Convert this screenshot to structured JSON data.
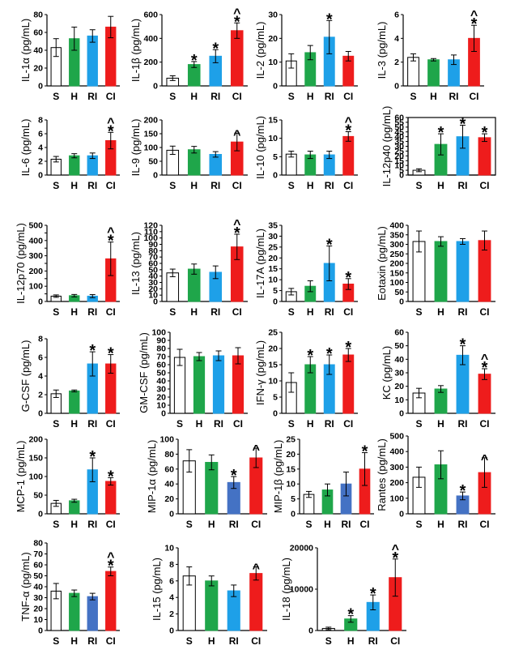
{
  "chart_data": [
    {
      "type": "bar",
      "ylabel": "IL-1α (pg/mL)",
      "categories": [
        "S",
        "H",
        "RI",
        "CI"
      ],
      "values": [
        43,
        53,
        56,
        66
      ],
      "errors": [
        10,
        13,
        7,
        12
      ],
      "ylim": [
        0,
        80
      ],
      "yticks": [
        0,
        20,
        40,
        60,
        80
      ],
      "marks": [
        "",
        "",
        "",
        ""
      ],
      "colors": [
        "#ffffff",
        "#1fa64a",
        "#1ea0e8",
        "#ee1c1c"
      ]
    },
    {
      "type": "bar",
      "ylabel": "IL-1β (pg/mL)",
      "categories": [
        "S",
        "H",
        "RI",
        "CI"
      ],
      "values": [
        65,
        180,
        250,
        465
      ],
      "errors": [
        20,
        25,
        55,
        65
      ],
      "ylim": [
        0,
        600
      ],
      "yticks": [
        0,
        200,
        400,
        600
      ],
      "marks": [
        "",
        "*",
        "*",
        "^*"
      ],
      "colors": [
        "#ffffff",
        "#1fa64a",
        "#1ea0e8",
        "#ee1c1c"
      ]
    },
    {
      "type": "bar",
      "ylabel": "IL-2 (pg/mL)",
      "categories": [
        "S",
        "H",
        "RI",
        "CI"
      ],
      "values": [
        10.5,
        14,
        20.5,
        12.5
      ],
      "errors": [
        3,
        3,
        7,
        2
      ],
      "ylim": [
        0,
        30
      ],
      "yticks": [
        0,
        10,
        20,
        30
      ],
      "marks": [
        "",
        "",
        "*",
        ""
      ],
      "colors": [
        "#ffffff",
        "#1fa64a",
        "#1ea0e8",
        "#ee1c1c"
      ]
    },
    {
      "type": "bar",
      "ylabel": "IL-3 (pg/mL)",
      "categories": [
        "S",
        "H",
        "RI",
        "CI"
      ],
      "values": [
        2.4,
        2.2,
        2.2,
        4
      ],
      "errors": [
        0.3,
        0.1,
        0.4,
        1.1
      ],
      "ylim": [
        0,
        6
      ],
      "yticks": [
        0,
        2,
        4,
        6
      ],
      "marks": [
        "",
        "",
        "",
        "^*"
      ],
      "colors": [
        "#ffffff",
        "#1fa64a",
        "#1ea0e8",
        "#ee1c1c"
      ]
    },
    {
      "type": "bar",
      "ylabel": "IL-6 (pg/mL)",
      "categories": [
        "S",
        "H",
        "RI",
        "CI"
      ],
      "values": [
        2.3,
        2.8,
        2.8,
        5
      ],
      "errors": [
        0.4,
        0.3,
        0.4,
        1.2
      ],
      "ylim": [
        0,
        8
      ],
      "yticks": [
        0,
        2,
        4,
        6,
        8
      ],
      "marks": [
        "",
        "",
        "",
        "^*"
      ],
      "colors": [
        "#ffffff",
        "#1fa64a",
        "#1ea0e8",
        "#ee1c1c"
      ]
    },
    {
      "type": "bar",
      "ylabel": "IL-9 (pg/mL)",
      "categories": [
        "S",
        "H",
        "RI",
        "CI"
      ],
      "values": [
        90,
        92,
        75,
        120
      ],
      "errors": [
        15,
        12,
        10,
        32
      ],
      "ylim": [
        0,
        200
      ],
      "yticks": [
        0,
        50,
        100,
        150,
        200
      ],
      "marks": [
        "",
        "",
        "",
        "^"
      ],
      "colors": [
        "#ffffff",
        "#1fa64a",
        "#1ea0e8",
        "#ee1c1c"
      ]
    },
    {
      "type": "bar",
      "ylabel": "IL-10 (pg/mL)",
      "categories": [
        "S",
        "H",
        "RI",
        "CI"
      ],
      "values": [
        5.7,
        5.5,
        5.5,
        10.5
      ],
      "errors": [
        0.8,
        1,
        1,
        1.3
      ],
      "ylim": [
        0,
        15
      ],
      "yticks": [
        0,
        5,
        10,
        15
      ],
      "marks": [
        "",
        "",
        "",
        "^*"
      ],
      "colors": [
        "#ffffff",
        "#1fa64a",
        "#1ea0e8",
        "#ee1c1c"
      ]
    },
    {
      "type": "bar",
      "ylabel": "IL-12p40 (pg/mL)",
      "categories": [
        "S",
        "H",
        "RI",
        "CI"
      ],
      "values": [
        5,
        32,
        40,
        39
      ],
      "errors": [
        1.5,
        11,
        12,
        4
      ],
      "ylim": [
        0,
        60
      ],
      "yticks": [
        0,
        5,
        10,
        15,
        20,
        25,
        30,
        35,
        40,
        45,
        50,
        55,
        60
      ],
      "marks": [
        "",
        "*",
        "*",
        "*"
      ],
      "colors": [
        "#ffffff",
        "#1fa64a",
        "#1ea0e8",
        "#ee1c1c"
      ]
    },
    {
      "type": "bar",
      "ylabel": "IL-12p70 (pg/mL)",
      "categories": [
        "S",
        "H",
        "RI",
        "CI"
      ],
      "values": [
        35,
        38,
        35,
        280
      ],
      "errors": [
        8,
        8,
        10,
        110
      ],
      "ylim": [
        0,
        500
      ],
      "yticks": [
        0,
        50,
        100,
        150,
        200,
        250,
        300,
        350,
        400,
        450,
        500
      ],
      "ytick_labels": [
        "0",
        "",
        "100",
        "",
        "200",
        "",
        "300",
        "",
        "400",
        "",
        "500"
      ],
      "marks": [
        "",
        "",
        "",
        "^*"
      ],
      "colors": [
        "#ffffff",
        "#1fa64a",
        "#1ea0e8",
        "#ee1c1c"
      ]
    },
    {
      "type": "bar",
      "ylabel": "IL-13 (pg/mL)",
      "categories": [
        "S",
        "H",
        "RI",
        "CI"
      ],
      "values": [
        45,
        51,
        46,
        86
      ],
      "errors": [
        6,
        8,
        10,
        20
      ],
      "ylim": [
        0,
        120
      ],
      "yticks": [
        0,
        10,
        20,
        30,
        40,
        50,
        60,
        70,
        80,
        90,
        100,
        110,
        120
      ],
      "marks": [
        "",
        "",
        "",
        "^*"
      ],
      "colors": [
        "#ffffff",
        "#1fa64a",
        "#1ea0e8",
        "#ee1c1c"
      ]
    },
    {
      "type": "bar",
      "ylabel": "IL-17A (pg/mL)",
      "categories": [
        "S",
        "H",
        "RI",
        "CI"
      ],
      "values": [
        4.5,
        7,
        17.5,
        8
      ],
      "errors": [
        1.5,
        2.5,
        8,
        2.5
      ],
      "ylim": [
        0,
        35
      ],
      "yticks": [
        0,
        5,
        10,
        15,
        20,
        25,
        30,
        35
      ],
      "marks": [
        "",
        "",
        "*",
        "*"
      ],
      "colors": [
        "#ffffff",
        "#1fa64a",
        "#1ea0e8",
        "#ee1c1c"
      ]
    },
    {
      "type": "bar",
      "ylabel": "Eotaxin (pg/mL)",
      "categories": [
        "S",
        "H",
        "RI",
        "CI"
      ],
      "values": [
        315,
        315,
        315,
        320
      ],
      "errors": [
        55,
        25,
        15,
        50
      ],
      "ylim": [
        0,
        400
      ],
      "yticks": [
        0,
        50,
        100,
        150,
        200,
        250,
        300,
        350,
        400
      ],
      "marks": [
        "",
        "",
        "",
        ""
      ],
      "colors": [
        "#ffffff",
        "#1fa64a",
        "#1ea0e8",
        "#ee1c1c"
      ]
    },
    {
      "type": "bar",
      "ylabel": "G-CSF (pg/mL)",
      "categories": [
        "S",
        "H",
        "RI",
        "CI"
      ],
      "values": [
        2.1,
        2.4,
        5.3,
        5.3
      ],
      "errors": [
        0.4,
        0.1,
        1.3,
        1
      ],
      "ylim": [
        0,
        8
      ],
      "yticks": [
        0,
        2,
        4,
        6,
        8
      ],
      "marks": [
        "",
        "",
        "*",
        "*"
      ],
      "colors": [
        "#ffffff",
        "#1fa64a",
        "#1ea0e8",
        "#ee1c1c"
      ]
    },
    {
      "type": "bar",
      "ylabel": "GM-CSF (pg/mL)",
      "categories": [
        "S",
        "H",
        "RI",
        "CI"
      ],
      "values": [
        69,
        70,
        71,
        71
      ],
      "errors": [
        10,
        5,
        6,
        10
      ],
      "ylim": [
        0,
        100
      ],
      "yticks": [
        0,
        10,
        20,
        30,
        40,
        50,
        60,
        70,
        80,
        90,
        100
      ],
      "marks": [
        "",
        "",
        "",
        ""
      ],
      "colors": [
        "#ffffff",
        "#1fa64a",
        "#1ea0e8",
        "#ee1c1c"
      ]
    },
    {
      "type": "bar",
      "ylabel": "IFN-γ (pg/mL)",
      "categories": [
        "S",
        "H",
        "RI",
        "CI"
      ],
      "values": [
        9.5,
        15,
        15,
        18
      ],
      "errors": [
        3,
        2.5,
        3,
        2
      ],
      "ylim": [
        0,
        25
      ],
      "yticks": [
        0,
        5,
        10,
        15,
        20,
        25
      ],
      "marks": [
        "",
        "*",
        "*",
        "*"
      ],
      "colors": [
        "#ffffff",
        "#1fa64a",
        "#1ea0e8",
        "#ee1c1c"
      ]
    },
    {
      "type": "bar",
      "ylabel": "KC (pg/mL)",
      "categories": [
        "S",
        "H",
        "RI",
        "CI"
      ],
      "values": [
        15,
        18,
        43,
        29
      ],
      "errors": [
        3.5,
        2.5,
        7,
        4
      ],
      "ylim": [
        0,
        60
      ],
      "yticks": [
        0,
        10,
        20,
        30,
        40,
        50,
        60
      ],
      "marks": [
        "",
        "",
        "*",
        "^*"
      ],
      "colors": [
        "#ffffff",
        "#1fa64a",
        "#1ea0e8",
        "#ee1c1c"
      ]
    },
    {
      "type": "bar",
      "ylabel": "MCP-1 (pg/mL)",
      "categories": [
        "S",
        "H",
        "RI",
        "CI"
      ],
      "values": [
        28,
        35,
        118,
        87
      ],
      "errors": [
        8,
        4,
        32,
        10
      ],
      "ylim": [
        0,
        200
      ],
      "yticks": [
        0,
        50,
        100,
        150,
        200
      ],
      "marks": [
        "",
        "",
        "*",
        "*"
      ],
      "colors": [
        "#ffffff",
        "#1fa64a",
        "#1ea0e8",
        "#ee1c1c"
      ]
    },
    {
      "type": "bar",
      "ylabel": "MIP-1α (pg/mL)",
      "categories": [
        "S",
        "H",
        "RI",
        "CI"
      ],
      "values": [
        71,
        69,
        42,
        75
      ],
      "errors": [
        15,
        10,
        8,
        13
      ],
      "ylim": [
        0,
        100
      ],
      "yticks": [
        0,
        20,
        40,
        60,
        80,
        100
      ],
      "marks": [
        "",
        "",
        "*",
        "^"
      ],
      "colors": [
        "#ffffff",
        "#1fa64a",
        "#4472c4",
        "#ee1c1c"
      ]
    },
    {
      "type": "bar",
      "ylabel": "MIP-1β (pg/mL)",
      "categories": [
        "S",
        "H",
        "RI",
        "CI"
      ],
      "values": [
        6.5,
        8,
        10,
        15
      ],
      "errors": [
        1,
        2,
        4,
        5.5
      ],
      "ylim": [
        0,
        25
      ],
      "yticks": [
        0,
        5,
        10,
        15,
        20,
        25
      ],
      "marks": [
        "",
        "",
        "",
        "*"
      ],
      "colors": [
        "#ffffff",
        "#1fa64a",
        "#4472c4",
        "#ee1c1c"
      ]
    },
    {
      "type": "bar",
      "ylabel": "Rantes (pg/mL)",
      "categories": [
        "S",
        "H",
        "RI",
        "CI"
      ],
      "values": [
        235,
        315,
        115,
        265
      ],
      "errors": [
        65,
        90,
        25,
        95
      ],
      "ylim": [
        0,
        500
      ],
      "yticks": [
        0,
        100,
        200,
        300,
        400,
        500
      ],
      "marks": [
        "",
        "",
        "*",
        "^"
      ],
      "colors": [
        "#ffffff",
        "#1fa64a",
        "#4472c4",
        "#ee1c1c"
      ]
    },
    {
      "type": "bar",
      "ylabel": "TNF-α (pg/mL)",
      "categories": [
        "S",
        "H",
        "RI",
        "CI"
      ],
      "values": [
        36,
        34,
        31,
        54
      ],
      "errors": [
        7,
        3,
        3,
        4
      ],
      "ylim": [
        0,
        80
      ],
      "yticks": [
        0,
        10,
        20,
        30,
        40,
        50,
        60,
        70,
        80
      ],
      "marks": [
        "",
        "",
        "",
        "^*"
      ],
      "colors": [
        "#ffffff",
        "#1fa64a",
        "#4472c4",
        "#ee1c1c"
      ]
    },
    {
      "type": "bar",
      "ylabel": "IL-15 (pg/mL)",
      "categories": [
        "S",
        "H",
        "RI",
        "CI"
      ],
      "values": [
        6.6,
        6,
        4.8,
        6.9
      ],
      "errors": [
        1.1,
        0.6,
        0.7,
        0.8
      ],
      "ylim": [
        0,
        10
      ],
      "yticks": [
        0,
        2,
        4,
        6,
        8,
        10
      ],
      "marks": [
        "",
        "",
        "",
        "^"
      ],
      "colors": [
        "#ffffff",
        "#1fa64a",
        "#1ea0e8",
        "#ee1c1c"
      ]
    },
    {
      "type": "bar",
      "ylabel": "IL-18 (pg/mL)",
      "categories": [
        "S",
        "H",
        "RI",
        "CI"
      ],
      "values": [
        500,
        2800,
        6800,
        12800
      ],
      "errors": [
        300,
        800,
        1800,
        4500
      ],
      "ylim": [
        0,
        20000
      ],
      "yticks": [
        0,
        10000,
        20000
      ],
      "marks": [
        "",
        "*",
        "*",
        "^*"
      ],
      "colors": [
        "#ffffff",
        "#1fa64a",
        "#1ea0e8",
        "#ee1c1c"
      ]
    }
  ]
}
